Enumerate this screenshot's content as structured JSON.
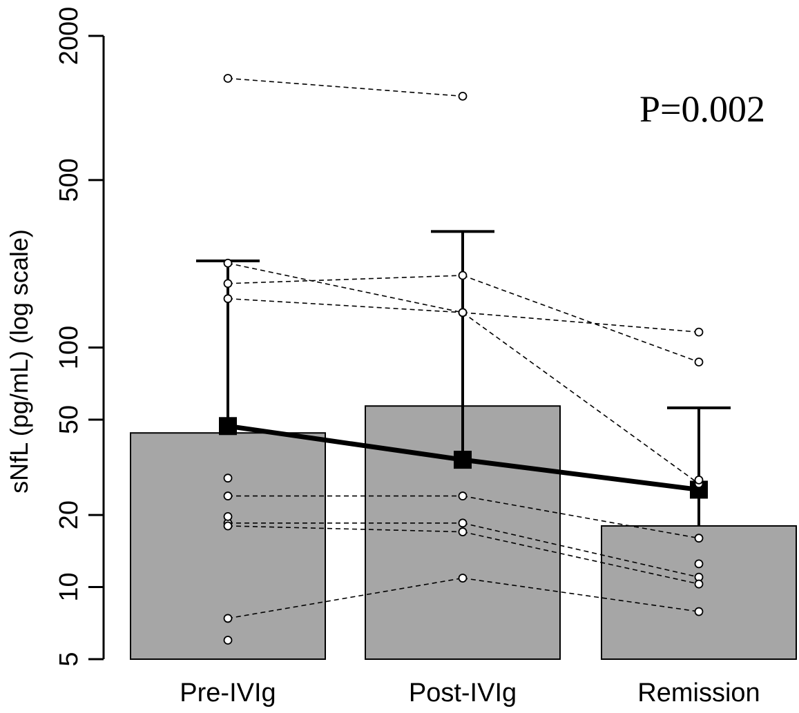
{
  "chart_data": {
    "type": "bar",
    "ylabel": "sNfL (pg/mL) (log scale)",
    "yscale": "log",
    "ylim": [
      5,
      2000
    ],
    "yticks": [
      5,
      10,
      20,
      50,
      100,
      500,
      2000
    ],
    "ytick_labels": [
      "5",
      "10",
      "20",
      "50",
      "100",
      "500",
      "2000"
    ],
    "categories": [
      "Pre-IVIg",
      "Post-IVIg",
      "Remission"
    ],
    "bars": {
      "values": [
        44,
        57,
        18
      ],
      "color": "#a6a6a6",
      "error_upper": [
        230,
        305,
        56
      ]
    },
    "mean_line": {
      "values": [
        47,
        34,
        25.5
      ],
      "color": "#000000"
    },
    "paired_series": [
      {
        "values": [
          1330,
          1120,
          null
        ]
      },
      {
        "values": [
          225,
          140,
          27
        ]
      },
      {
        "values": [
          185,
          200,
          87
        ]
      },
      {
        "values": [
          160,
          140,
          116
        ]
      },
      {
        "values": [
          24,
          24,
          16
        ]
      },
      {
        "values": [
          18.5,
          18.5,
          11
        ]
      },
      {
        "values": [
          18,
          17,
          10.3
        ]
      },
      {
        "values": [
          7.4,
          10.9,
          7.9
        ]
      }
    ],
    "unpaired_points": [
      {
        "category": "Pre-IVIg",
        "values": [
          28.5,
          19.7,
          6
        ]
      },
      {
        "category": "Remission",
        "values": [
          12.5,
          28
        ]
      }
    ],
    "annotations": [
      {
        "text": "P=0.002",
        "position": "top-right"
      }
    ],
    "grid": false,
    "legend": "none"
  }
}
